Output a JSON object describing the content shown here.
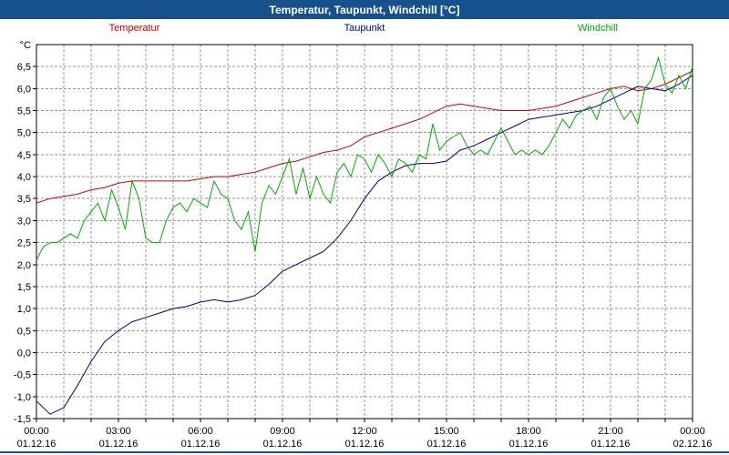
{
  "window": {
    "title": "Temperatur, Taupunkt, Windchill [°C]"
  },
  "legend": [
    {
      "label": "Temperatur",
      "color": "#cc0000"
    },
    {
      "label": "Taupunkt",
      "color": "#000080"
    },
    {
      "label": "Windchill",
      "color": "#00aa00"
    }
  ],
  "chart_data": {
    "type": "line",
    "title": "Temperatur, Taupunkt, Windchill [°C]",
    "xlabel": "",
    "ylabel": "°C",
    "grid": true,
    "legend_position": "top",
    "ylim": [
      -1.5,
      7.0
    ],
    "xlim": [
      0,
      24
    ],
    "y_tick_step": 0.5,
    "y_ticks": [
      {
        "value": -1.5,
        "label": "-1,5"
      },
      {
        "value": -1.0,
        "label": "-1,0"
      },
      {
        "value": -0.5,
        "label": "-0,5"
      },
      {
        "value": 0.0,
        "label": "0,0"
      },
      {
        "value": 0.5,
        "label": "0,5"
      },
      {
        "value": 1.0,
        "label": "1,0"
      },
      {
        "value": 1.5,
        "label": "1,5"
      },
      {
        "value": 2.0,
        "label": "2,0"
      },
      {
        "value": 2.5,
        "label": "2,5"
      },
      {
        "value": 3.0,
        "label": "3,0"
      },
      {
        "value": 3.5,
        "label": "3,5"
      },
      {
        "value": 4.0,
        "label": "4,0"
      },
      {
        "value": 4.5,
        "label": "4,5"
      },
      {
        "value": 5.0,
        "label": "5,0"
      },
      {
        "value": 5.5,
        "label": "5,5"
      },
      {
        "value": 6.0,
        "label": "6,0"
      },
      {
        "value": 6.5,
        "label": "6,5"
      }
    ],
    "x_ticks": [
      {
        "hour": 0,
        "time": "00:00",
        "date": "01.12.16"
      },
      {
        "hour": 3,
        "time": "03:00",
        "date": "01.12.16"
      },
      {
        "hour": 6,
        "time": "06:00",
        "date": "01.12.16"
      },
      {
        "hour": 9,
        "time": "09:00",
        "date": "01.12.16"
      },
      {
        "hour": 12,
        "time": "12:00",
        "date": "01.12.16"
      },
      {
        "hour": 15,
        "time": "15:00",
        "date": "01.12.16"
      },
      {
        "hour": 18,
        "time": "18:00",
        "date": "01.12.16"
      },
      {
        "hour": 21,
        "time": "21:00",
        "date": "01.12.16"
      },
      {
        "hour": 24,
        "time": "00:00",
        "date": "02.12.16"
      }
    ],
    "series": [
      {
        "name": "Temperatur",
        "color": "#cc0000",
        "step_h": 0.5,
        "values": [
          3.4,
          3.5,
          3.55,
          3.6,
          3.7,
          3.75,
          3.85,
          3.9,
          3.9,
          3.9,
          3.9,
          3.9,
          3.95,
          4.0,
          4.0,
          4.05,
          4.1,
          4.2,
          4.3,
          4.35,
          4.45,
          4.55,
          4.6,
          4.7,
          4.9,
          5.0,
          5.1,
          5.2,
          5.3,
          5.45,
          5.6,
          5.65,
          5.6,
          5.55,
          5.5,
          5.5,
          5.5,
          5.55,
          5.6,
          5.7,
          5.8,
          5.9,
          6.0,
          6.05,
          5.95,
          6.0,
          6.1,
          6.25,
          6.4
        ]
      },
      {
        "name": "Taupunkt",
        "color": "#000080",
        "step_h": 0.5,
        "values": [
          -1.1,
          -1.4,
          -1.25,
          -0.75,
          -0.2,
          0.25,
          0.5,
          0.7,
          0.8,
          0.9,
          1.0,
          1.05,
          1.15,
          1.2,
          1.15,
          1.2,
          1.3,
          1.55,
          1.85,
          2.0,
          2.15,
          2.3,
          2.6,
          3.0,
          3.5,
          3.9,
          4.1,
          4.25,
          4.3,
          4.3,
          4.35,
          4.6,
          4.7,
          4.85,
          5.0,
          5.15,
          5.3,
          5.35,
          5.4,
          5.45,
          5.5,
          5.6,
          5.75,
          5.9,
          6.05,
          6.0,
          5.95,
          6.1,
          6.3
        ]
      },
      {
        "name": "Windchill",
        "color": "#00aa00",
        "step_h": 0.25,
        "values": [
          2.1,
          2.4,
          2.5,
          2.5,
          2.6,
          2.7,
          2.6,
          3.0,
          3.2,
          3.4,
          3.0,
          3.7,
          3.3,
          2.8,
          3.9,
          3.5,
          2.6,
          2.5,
          2.5,
          3.0,
          3.3,
          3.4,
          3.2,
          3.5,
          3.4,
          3.3,
          3.9,
          3.6,
          3.5,
          3.0,
          2.8,
          3.2,
          2.3,
          3.4,
          3.8,
          3.6,
          4.0,
          4.4,
          3.6,
          4.2,
          3.5,
          4.0,
          3.6,
          3.4,
          4.1,
          4.3,
          4.0,
          4.5,
          4.4,
          4.1,
          4.5,
          4.3,
          4.0,
          4.4,
          4.3,
          4.1,
          4.5,
          4.4,
          5.2,
          4.6,
          4.8,
          4.9,
          5.0,
          4.7,
          4.5,
          4.6,
          4.5,
          4.8,
          5.1,
          4.8,
          4.5,
          4.6,
          4.5,
          4.6,
          4.5,
          4.7,
          5.0,
          5.3,
          5.1,
          5.4,
          5.5,
          5.6,
          5.3,
          5.8,
          6.0,
          5.6,
          5.3,
          5.5,
          5.2,
          6.0,
          6.2,
          6.7,
          6.1,
          5.9,
          6.3,
          6.0,
          6.5
        ]
      }
    ]
  }
}
